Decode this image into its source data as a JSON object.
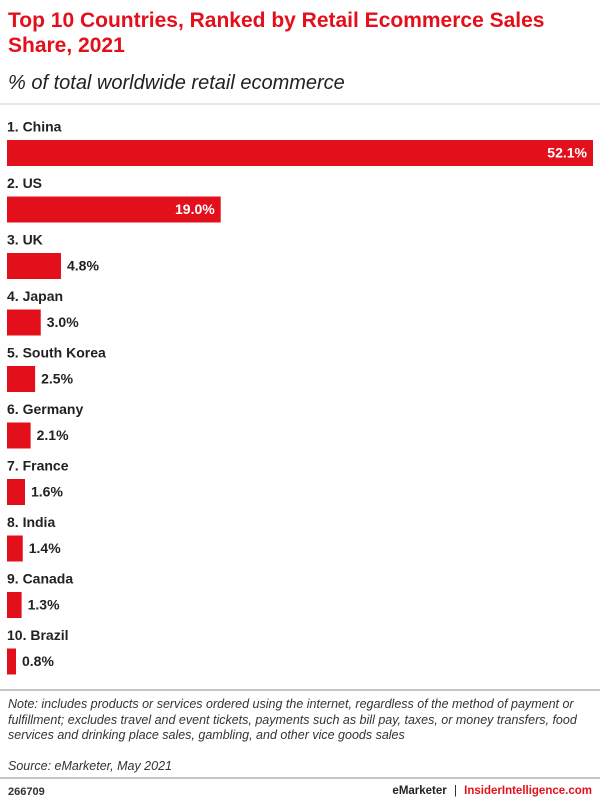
{
  "chart_data": {
    "type": "bar",
    "orientation": "horizontal",
    "title": "Top 10 Countries, Ranked by Retail Ecommerce Sales Share, 2021",
    "subtitle": "% of total worldwide retail ecommerce",
    "categories": [
      "1. China",
      "2. US",
      "3. UK",
      "4. Japan",
      "5. South Korea",
      "6. Germany",
      "7. France",
      "8. India",
      "9. Canada",
      "10. Brazil"
    ],
    "values": [
      52.1,
      19.0,
      4.8,
      3.0,
      2.5,
      2.1,
      1.6,
      1.4,
      1.3,
      0.8
    ],
    "value_labels": [
      "52.1%",
      "19.0%",
      "4.8%",
      "3.0%",
      "2.5%",
      "2.1%",
      "1.6%",
      "1.4%",
      "1.3%",
      "0.8%"
    ],
    "color": "#e3101c"
  },
  "footer": {
    "note": "Note: includes products or services ordered using the internet, regardless of the method of payment or fulfillment; excludes travel and event tickets, payments such as bill pay, taxes, or money transfers, food services and drinking place sales, gambling, and other vice goods sales",
    "source": "Source: eMarketer, May 2021",
    "chart_id": "266709",
    "brand": "eMarketer",
    "separator": "|",
    "site": "InsiderIntelligence.com"
  }
}
